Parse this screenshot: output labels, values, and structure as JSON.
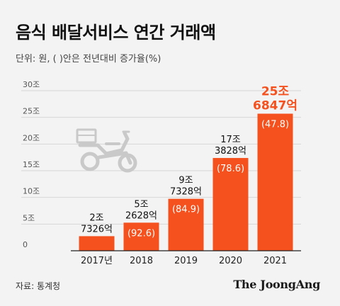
{
  "title": "음식 배달서비스 연간 거래액",
  "subtitle": "단위: 원, ( )안은 전년대비 증가율(%)",
  "source": "자료: 통계청",
  "brand": "The JoongAng",
  "icon": "delivery-scooter-icon",
  "colors": {
    "bar": "#f4511e",
    "highlight": "#f4511e",
    "background": "#f3f3f3"
  },
  "chart_data": {
    "type": "bar",
    "categories": [
      "2017년",
      "2018",
      "2019",
      "2020",
      "2021"
    ],
    "values": [
      2.7326,
      5.2628,
      9.7328,
      17.3828,
      25.6847
    ],
    "value_labels": [
      [
        "2조",
        "7326억"
      ],
      [
        "5조",
        "2628억"
      ],
      [
        "9조",
        "7328억"
      ],
      [
        "17조",
        "3828억"
      ],
      [
        "25조",
        "6847억"
      ]
    ],
    "growth_labels": [
      "",
      "(92.6)",
      "(84.9)",
      "(78.6)",
      "(47.8)"
    ],
    "highlight_index": 4,
    "ylim": [
      0,
      30
    ],
    "yticks": [
      0,
      5,
      10,
      15,
      20,
      25,
      30
    ],
    "ytick_labels": [
      "0",
      "5조",
      "10조",
      "15조",
      "20조",
      "25조",
      "30조"
    ],
    "grid": true,
    "xlabel": "",
    "ylabel": ""
  }
}
